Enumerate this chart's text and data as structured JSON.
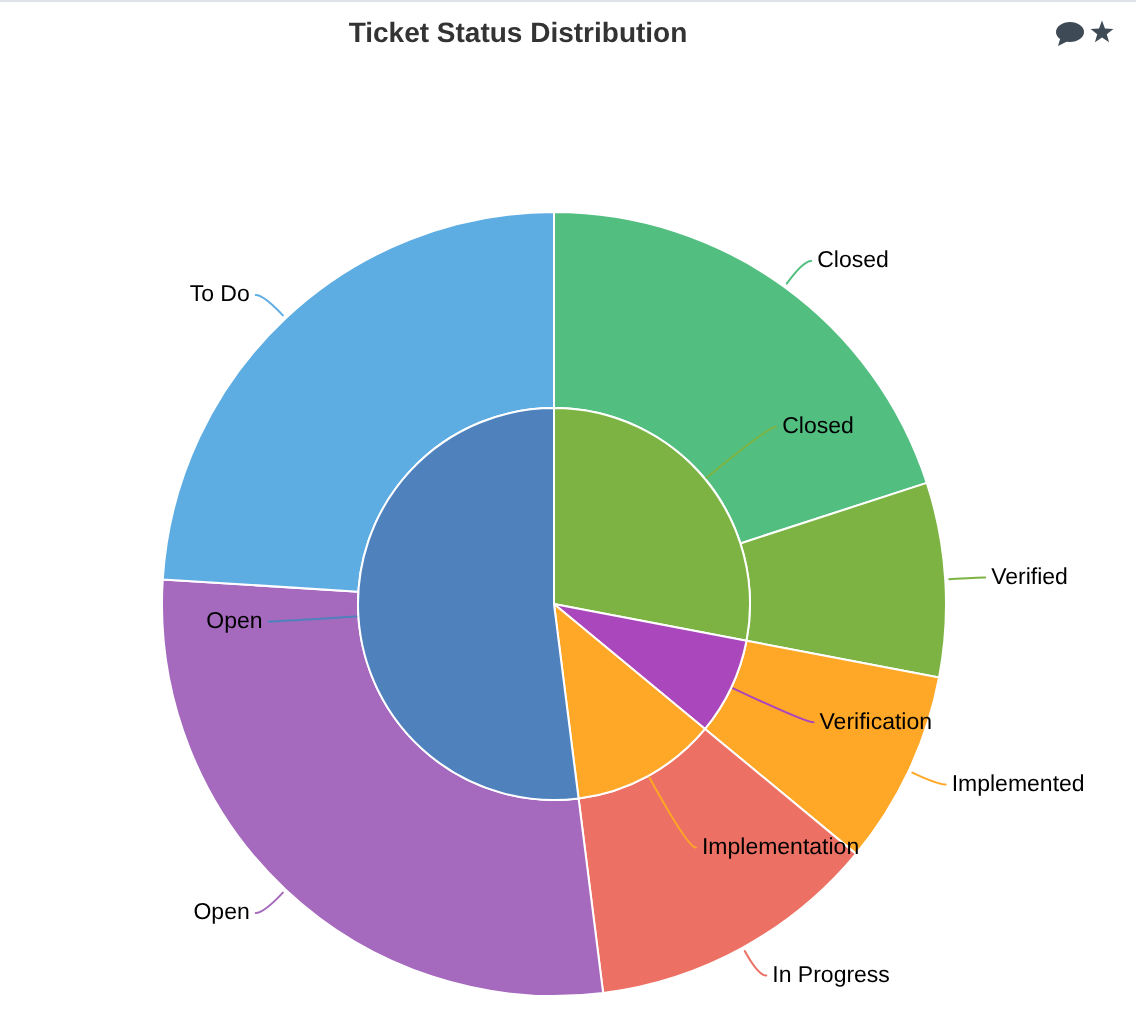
{
  "chart_data": [
    {
      "type": "pie",
      "title": "Ticket Status Distribution",
      "categories": [
        "Closed",
        "Verification",
        "Implementation",
        "Open"
      ],
      "values": [
        28,
        8,
        12,
        52
      ],
      "colors": [
        "#7cb342",
        "#ab47bc",
        "#ffa726",
        "#4f81bd"
      ]
    },
    {
      "type": "donut",
      "categories": [
        "Closed",
        "Verified",
        "Implemented",
        "In Progress",
        "Open",
        "To Do"
      ],
      "values": [
        20,
        8,
        8,
        12,
        28,
        24
      ],
      "colors": [
        "#52be80",
        "#7cb342",
        "#ffa726",
        "#ec7063",
        "#a569bd",
        "#5dade2"
      ]
    }
  ]
}
